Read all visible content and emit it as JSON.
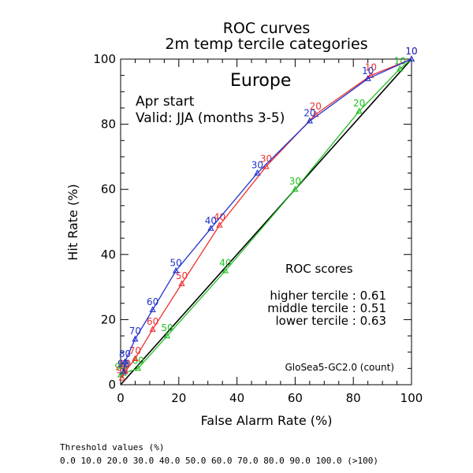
{
  "chart_data": {
    "type": "line",
    "title": "ROC curves",
    "subtitle": "2m temp tercile categories",
    "region": "Europe",
    "start_text": "Apr start",
    "valid_text": "Valid: JJA (months 3-5)",
    "xlabel": "False Alarm Rate (%)",
    "ylabel": "Hit Rate (%)",
    "xlim": [
      0,
      100
    ],
    "ylim": [
      0,
      100
    ],
    "x_ticks": [
      "0",
      "20",
      "40",
      "60",
      "80",
      "100"
    ],
    "y_ticks": [
      "0",
      "20",
      "40",
      "60",
      "80",
      "100"
    ],
    "grid": false,
    "diagonal_color": "#000000",
    "scores_title": "ROC scores",
    "model_label": "GloSea5-GC2.0 (count)",
    "series": [
      {
        "name": "higher tercile",
        "score_text": "higher tercile : 0.61",
        "color": "#ee3030",
        "points": [
          {
            "t": "90",
            "x": 0.5,
            "y": 2
          },
          {
            "t": "80",
            "x": 1.5,
            "y": 4
          },
          {
            "t": "70",
            "x": 5,
            "y": 8
          },
          {
            "t": "60",
            "x": 11,
            "y": 17
          },
          {
            "t": "50",
            "x": 21,
            "y": 31
          },
          {
            "t": "40",
            "x": 34,
            "y": 49
          },
          {
            "t": "30",
            "x": 50,
            "y": 67
          },
          {
            "t": "20",
            "x": 67,
            "y": 83
          },
          {
            "t": "10",
            "x": 86,
            "y": 95
          },
          {
            "t": "10",
            "x": 100,
            "y": 100
          }
        ]
      },
      {
        "name": "middle tercile",
        "score_text": "middle tercile : 0.51",
        "color": "#22c022",
        "points": [
          {
            "t": "90",
            "x": 0,
            "y": 3
          },
          {
            "t": "80",
            "x": 1,
            "y": 3.5
          },
          {
            "t": "60",
            "x": 6,
            "y": 5
          },
          {
            "t": "50",
            "x": 16,
            "y": 15
          },
          {
            "t": "40",
            "x": 36,
            "y": 35
          },
          {
            "t": "30",
            "x": 60,
            "y": 60
          },
          {
            "t": "20",
            "x": 82,
            "y": 84
          },
          {
            "t": "10",
            "x": 96,
            "y": 97
          },
          {
            "t": "10",
            "x": 100,
            "y": 100
          }
        ]
      },
      {
        "name": "lower tercile",
        "score_text": "lower tercile : 0.63",
        "color": "#2233cc",
        "points": [
          {
            "t": "90",
            "x": 1,
            "y": 4
          },
          {
            "t": "80",
            "x": 1.5,
            "y": 7
          },
          {
            "t": "70",
            "x": 5,
            "y": 14
          },
          {
            "t": "60",
            "x": 11,
            "y": 23
          },
          {
            "t": "50",
            "x": 19,
            "y": 35
          },
          {
            "t": "40",
            "x": 31,
            "y": 48
          },
          {
            "t": "30",
            "x": 47,
            "y": 65
          },
          {
            "t": "20",
            "x": 65,
            "y": 81
          },
          {
            "t": "10",
            "x": 85,
            "y": 94
          },
          {
            "t": "10",
            "x": 100,
            "y": 100
          }
        ]
      }
    ]
  },
  "footer": {
    "title": "Threshold values (%)",
    "values": "0.0 10.0 20.0 30.0 40.0 50.0 60.0 70.0 80.0 90.0 100.0 (>100)"
  }
}
